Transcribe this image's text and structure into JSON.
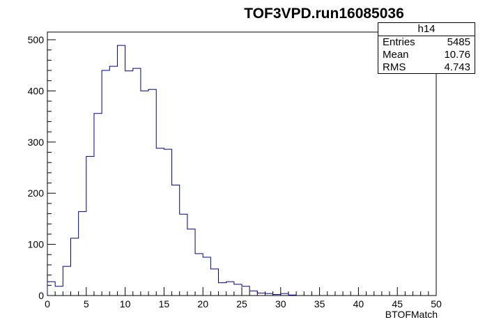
{
  "chart_data": {
    "type": "histogram",
    "title": "TOF3VPD.run16085036",
    "xlabel": "BTOFMatch",
    "ylabel": "",
    "xlim": [
      0,
      50
    ],
    "ylim": [
      0,
      515
    ],
    "bin_width": 1,
    "x_ticks": [
      0,
      5,
      10,
      15,
      20,
      25,
      30,
      35,
      40,
      45,
      50
    ],
    "y_ticks": [
      0,
      100,
      200,
      300,
      400,
      500
    ],
    "bin_edges": [
      0,
      1,
      2,
      3,
      4,
      5,
      6,
      7,
      8,
      9,
      10,
      11,
      12,
      13,
      14,
      15,
      16,
      17,
      18,
      19,
      20,
      21,
      22,
      23,
      24,
      25,
      26,
      27,
      28,
      29,
      30,
      31,
      32
    ],
    "values": [
      27,
      18,
      57,
      112,
      164,
      272,
      356,
      440,
      448,
      489,
      439,
      444,
      400,
      403,
      288,
      286,
      216,
      159,
      130,
      82,
      75,
      52,
      25,
      27,
      22,
      18,
      9,
      5,
      4,
      2,
      4,
      1
    ],
    "line_color": "#00008b",
    "stats_box": {
      "name": "h14",
      "entries_label": "Entries",
      "entries": "5485",
      "mean_label": "Mean",
      "mean": "10.76",
      "rms_label": "RMS",
      "rms": "4.743"
    }
  }
}
